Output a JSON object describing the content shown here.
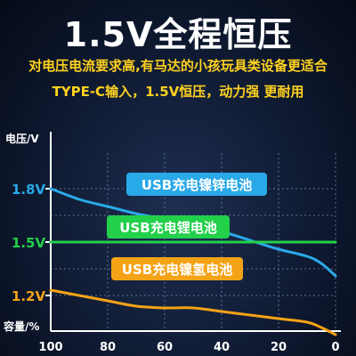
{
  "header": {
    "title": "1.5V全程恒压",
    "line1": "对电压电流要求高,有马达的小孩玩具类设备更适合",
    "line2": "TYPE-C输入，1.5V恒压，动力强 更耐用"
  },
  "colors": {
    "nizn": "#29a9e8",
    "lithium": "#22d04a",
    "nimh": "#f5a316",
    "accent_text": "#ffd21f",
    "axis": "#ffffff"
  },
  "chart_data": {
    "type": "line",
    "ylabel": "电压/V",
    "xlabel": "容量/%",
    "x_ticks": [
      100,
      80,
      60,
      40,
      20,
      0
    ],
    "xlim": [
      100,
      0
    ],
    "ylim": [
      1.0,
      2.0
    ],
    "y_ticks": [
      {
        "label": "1.8V",
        "value": 1.8,
        "color": "#29a9e8"
      },
      {
        "label": "1.5V",
        "value": 1.5,
        "color": "#22d04a"
      },
      {
        "label": "1.2V",
        "value": 1.2,
        "color": "#f5a316"
      }
    ],
    "series": [
      {
        "name": "USB充电镍锌电池",
        "color": "#29a9e8",
        "x": [
          100,
          90,
          80,
          70,
          60,
          50,
          40,
          30,
          20,
          10,
          5,
          0
        ],
        "y": [
          1.8,
          1.74,
          1.7,
          1.66,
          1.63,
          1.6,
          1.56,
          1.51,
          1.46,
          1.42,
          1.38,
          1.31
        ]
      },
      {
        "name": "USB充电锂电池",
        "color": "#22d04a",
        "x": [
          100,
          0
        ],
        "y": [
          1.5,
          1.5
        ]
      },
      {
        "name": "USB充电镍氢电池",
        "color": "#f5a316",
        "x": [
          100,
          90,
          80,
          70,
          60,
          50,
          40,
          30,
          20,
          10,
          5,
          0
        ],
        "y": [
          1.23,
          1.2,
          1.17,
          1.14,
          1.13,
          1.13,
          1.11,
          1.09,
          1.07,
          1.05,
          1.02,
          0.98
        ]
      }
    ]
  }
}
